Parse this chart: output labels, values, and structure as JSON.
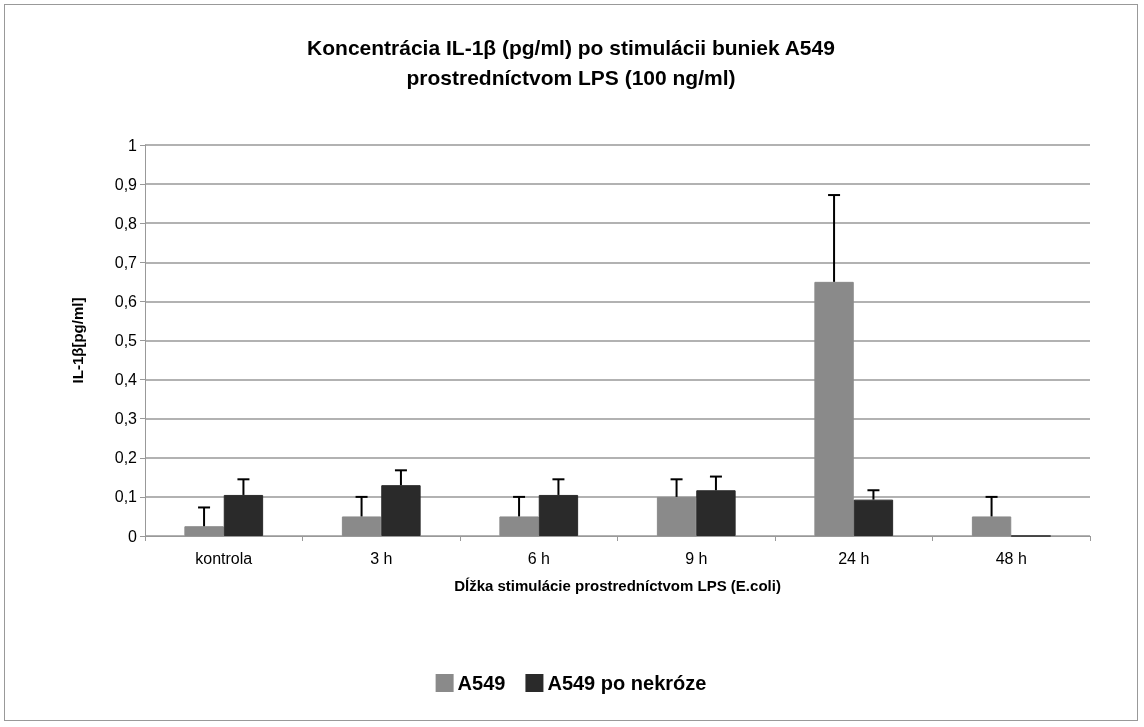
{
  "chart_data": {
    "type": "bar",
    "title": "Koncentrácia IL-1β (pg/ml) po stimulácii buniek A549\nprostredníctvom LPS (100 ng/ml)",
    "xlabel": "Dĺžka stimulácie prostredníctvom LPS (E.coli)",
    "ylabel": "IL-1β[pg/ml]",
    "categories": [
      "kontrola",
      "3 h",
      "6 h",
      "9 h",
      "24 h",
      "48 h"
    ],
    "series": [
      {
        "name": "A549",
        "color": "#8a8a8a",
        "values": [
          0.025,
          0.05,
          0.05,
          0.1,
          0.65,
          0.05
        ],
        "errors": [
          [
            0.025,
            0.073
          ],
          [
            0.05,
            0.1
          ],
          [
            0.05,
            0.1
          ],
          [
            0.1,
            0.145
          ],
          [
            0.65,
            0.872
          ],
          [
            0.05,
            0.1
          ]
        ]
      },
      {
        "name": "A549 po nekróze",
        "color": "#2a2a2a",
        "values": [
          0.105,
          0.13,
          0.105,
          0.117,
          0.093,
          0
        ],
        "errors": [
          [
            0.105,
            0.145
          ],
          [
            0.13,
            0.168
          ],
          [
            0.105,
            0.145
          ],
          [
            0.117,
            0.152
          ],
          [
            0.093,
            0.117
          ],
          null
        ]
      }
    ],
    "ylim": [
      0,
      1
    ],
    "yticks": [
      0,
      {
        "value": 0.1,
        "label": "0,1"
      },
      {
        "value": 0.2,
        "label": "0,2"
      },
      {
        "value": 0.3,
        "label": "0,3"
      },
      {
        "value": 0.4,
        "label": "0,4"
      },
      {
        "value": 0.5,
        "label": "0,5"
      },
      {
        "value": 0.6,
        "label": "0,6"
      },
      {
        "value": 0.7,
        "label": "0,7"
      },
      {
        "value": 0.8,
        "label": "0,8"
      },
      {
        "value": 0.9,
        "label": "0,9"
      },
      1
    ],
    "grid": "y",
    "legend": "bottom"
  }
}
